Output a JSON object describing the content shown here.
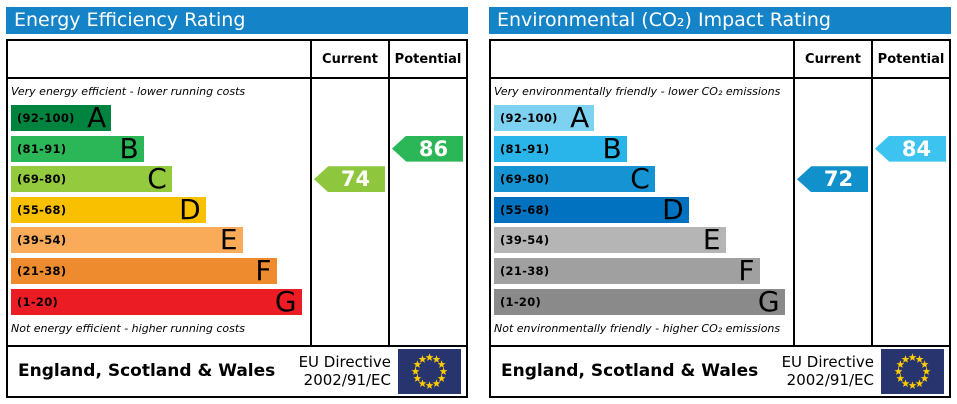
{
  "colors": {
    "header_bg": "#1583c7",
    "border": "#000000",
    "flag_bg": "#27346d",
    "flag_stars": "#ffcc00",
    "arrow_text": "#ffffff"
  },
  "panels": [
    {
      "title": "Energy Efficiency Rating",
      "columns": {
        "current": "Current",
        "potential": "Potential"
      },
      "top_note": "Very energy efficient - lower running costs",
      "bottom_note": "Not energy efficient - higher running costs",
      "bands": [
        {
          "range": "(92-100)",
          "letter": "A",
          "color": "#00833f",
          "width_pct": 34
        },
        {
          "range": "(81-91)",
          "letter": "B",
          "color": "#2bb657",
          "width_pct": 45
        },
        {
          "range": "(69-80)",
          "letter": "C",
          "color": "#93ca3e",
          "width_pct": 54.5
        },
        {
          "range": "(55-68)",
          "letter": "D",
          "color": "#f9c000",
          "width_pct": 66
        },
        {
          "range": "(39-54)",
          "letter": "E",
          "color": "#f9ab59",
          "width_pct": 78.5
        },
        {
          "range": "(21-38)",
          "letter": "F",
          "color": "#ee8b2e",
          "width_pct": 90
        },
        {
          "range": "(1-20)",
          "letter": "G",
          "color": "#ec1c24",
          "width_pct": 98.5
        }
      ],
      "current": {
        "value": "74",
        "row": 2,
        "color": "#8ec63e"
      },
      "potential": {
        "value": "86",
        "row": 1,
        "color": "#2bb657"
      },
      "footer": {
        "region": "England, Scotland & Wales",
        "directive_line1": "EU Directive",
        "directive_line2": "2002/91/EC"
      }
    },
    {
      "title": "Environmental (CO₂) Impact Rating",
      "columns": {
        "current": "Current",
        "potential": "Potential"
      },
      "top_note": "Very environmentally friendly - lower CO₂ emissions",
      "bottom_note": "Not environmentally friendly - higher CO₂ emissions",
      "bands": [
        {
          "range": "(92-100)",
          "letter": "A",
          "color": "#7ed2f1",
          "width_pct": 34
        },
        {
          "range": "(81-91)",
          "letter": "B",
          "color": "#29b5e9",
          "width_pct": 45
        },
        {
          "range": "(69-80)",
          "letter": "C",
          "color": "#1593d2",
          "width_pct": 54.5
        },
        {
          "range": "(55-68)",
          "letter": "D",
          "color": "#0072bf",
          "width_pct": 66
        },
        {
          "range": "(39-54)",
          "letter": "E",
          "color": "#b5b5b5",
          "width_pct": 78.5
        },
        {
          "range": "(21-38)",
          "letter": "F",
          "color": "#a0a0a0",
          "width_pct": 90
        },
        {
          "range": "(1-20)",
          "letter": "G",
          "color": "#8a8a8a",
          "width_pct": 98.5
        }
      ],
      "current": {
        "value": "72",
        "row": 2,
        "color": "#1191cb"
      },
      "potential": {
        "value": "84",
        "row": 1,
        "color": "#3cc3f0"
      },
      "footer": {
        "region": "England, Scotland & Wales",
        "directive_line1": "EU Directive",
        "directive_line2": "2002/91/EC"
      }
    }
  ],
  "chart_data": [
    {
      "type": "bar",
      "title": "Energy Efficiency Rating",
      "categories": [
        "A (92-100)",
        "B (81-91)",
        "C (69-80)",
        "D (55-68)",
        "E (39-54)",
        "F (21-38)",
        "G (1-20)"
      ],
      "band_relative_widths_pct": [
        34,
        45,
        54.5,
        66,
        78.5,
        90,
        98.5
      ],
      "series": [
        {
          "name": "Current",
          "value": 74,
          "band": "C"
        },
        {
          "name": "Potential",
          "value": 86,
          "band": "B"
        }
      ],
      "scale_range": [
        1,
        100
      ],
      "top_annotation": "Very energy efficient - lower running costs",
      "bottom_annotation": "Not energy efficient - higher running costs",
      "footer": "England, Scotland & Wales — EU Directive 2002/91/EC"
    },
    {
      "type": "bar",
      "title": "Environmental (CO₂) Impact Rating",
      "categories": [
        "A (92-100)",
        "B (81-91)",
        "C (69-80)",
        "D (55-68)",
        "E (39-54)",
        "F (21-38)",
        "G (1-20)"
      ],
      "band_relative_widths_pct": [
        34,
        45,
        54.5,
        66,
        78.5,
        90,
        98.5
      ],
      "series": [
        {
          "name": "Current",
          "value": 72,
          "band": "C"
        },
        {
          "name": "Potential",
          "value": 84,
          "band": "B"
        }
      ],
      "scale_range": [
        1,
        100
      ],
      "top_annotation": "Very environmentally friendly - lower CO₂ emissions",
      "bottom_annotation": "Not environmentally friendly - higher CO₂ emissions",
      "footer": "England, Scotland & Wales — EU Directive 2002/91/EC"
    }
  ]
}
